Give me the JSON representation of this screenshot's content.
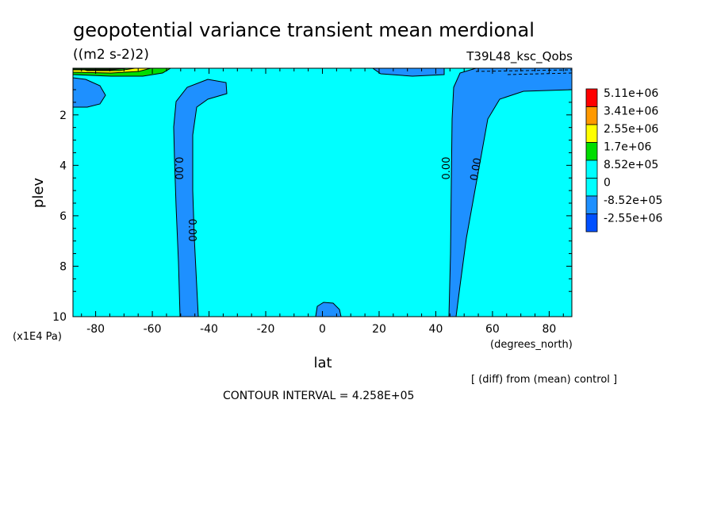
{
  "chart_data": {
    "type": "contour",
    "title": "geopotential variance transient mean merdional",
    "units": "((m2 s-2)2)",
    "run_label": "T39L48_ksc_Qobs",
    "xlabel": "lat",
    "xunits": "(degrees_north)",
    "ylabel": "plev",
    "yunits": "(x1E4 Pa)",
    "xlim": [
      -88,
      88
    ],
    "ylim": [
      10,
      0.15
    ],
    "x_ticks": [
      -80,
      -60,
      -40,
      -20,
      0,
      20,
      40,
      60,
      80
    ],
    "y_ticks": [
      2,
      4,
      6,
      8,
      10
    ],
    "diff_note": "[ (diff) from (mean) control ]",
    "contour_interval_text": "CONTOUR INTERVAL = 4.258E+05",
    "contour_labels": [
      "0.00",
      "0.00",
      "0.00",
      "0.00"
    ],
    "colorbar": {
      "levels": [
        "5.11e+06",
        "3.41e+06",
        "2.55e+06",
        "1.7e+06",
        "8.52e+05",
        "0",
        "-8.52e+05",
        "-2.55e+06"
      ],
      "colors": [
        "#ff0000",
        "#ff9900",
        "#ffff00",
        "#00dd00",
        "#00ffff",
        "#00ffff",
        "#1e90ff",
        "#0050ff"
      ]
    },
    "background_color": "#00ffff",
    "negative_color": "#1e90ff"
  }
}
